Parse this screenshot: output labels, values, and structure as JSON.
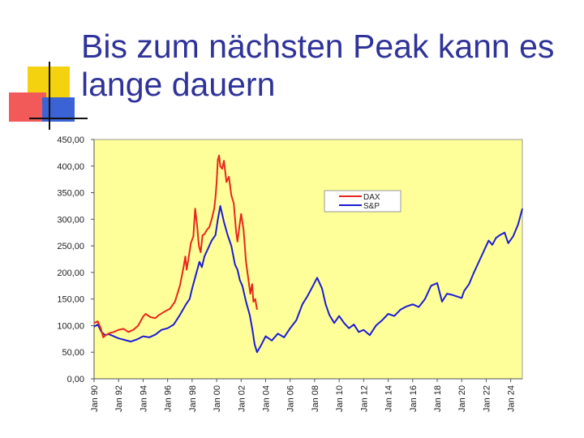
{
  "slide": {
    "title": "Bis zum nächsten Peak kann es lange dauern"
  },
  "colors": {
    "title": "#2f3399",
    "plot_background": "#ffff99",
    "dax": "#e8271c",
    "sp": "#1c1cd6",
    "deco_yellow": "#f5d20f",
    "deco_red": "#f25a5a",
    "deco_blue": "#3b63d6"
  },
  "chart_data": {
    "type": "line",
    "ylim": [
      0,
      450
    ],
    "y_ticks": [
      "0,00",
      "50,00",
      "100,00",
      "150,00",
      "200,00",
      "250,00",
      "300,00",
      "350,00",
      "400,00",
      "450,00"
    ],
    "y_tick_values": [
      0,
      50,
      100,
      150,
      200,
      250,
      300,
      350,
      400,
      450
    ],
    "x_ticks": [
      "Jan 90",
      "Jan 92",
      "Jan 94",
      "Jan 96",
      "Jan 98",
      "Jan 00",
      "Jan 02",
      "Jan 04",
      "Jan 06",
      "Jan 08",
      "Jan 10",
      "Jan 12",
      "Jan 14",
      "Jan 16",
      "Jan 18",
      "Jan 20",
      "Jan 22",
      "Jan 24"
    ],
    "x_tick_years": [
      1990,
      1992,
      1994,
      1996,
      1998,
      2000,
      2002,
      2004,
      2006,
      2008,
      2010,
      2012,
      2014,
      2016,
      2018,
      2020,
      2022,
      2024
    ],
    "xlim": [
      1990,
      2024.95
    ],
    "legend": {
      "position": "top-right"
    },
    "grid": false,
    "series": [
      {
        "name": "DAX",
        "color": "#e8271c",
        "x": [
          1990,
          1990.3,
          1990.55,
          1990.75,
          1991,
          1991.3,
          1991.6,
          1992,
          1992.4,
          1992.8,
          1993.2,
          1993.6,
          1994,
          1994.2,
          1994.6,
          1995,
          1995.3,
          1995.8,
          1996.2,
          1996.6,
          1997,
          1997.3,
          1997.45,
          1997.55,
          1997.7,
          1997.9,
          1998.1,
          1998.25,
          1998.4,
          1998.55,
          1998.7,
          1998.85,
          1999,
          1999.2,
          1999.4,
          1999.6,
          1999.8,
          1999.9,
          2000.0,
          2000.1,
          2000.2,
          2000.3,
          2000.45,
          2000.6,
          2000.8,
          2001.0,
          2001.2,
          2001.4,
          2001.6,
          2001.7,
          2001.85,
          2002.0,
          2002.2,
          2002.4,
          2002.6,
          2002.75,
          2002.9,
          2003.0,
          2003.15,
          2003.3
        ],
        "y": [
          105,
          108,
          95,
          78,
          83,
          86,
          88,
          92,
          94,
          88,
          92,
          100,
          117,
          122,
          116,
          114,
          120,
          127,
          132,
          145,
          175,
          210,
          230,
          205,
          225,
          255,
          268,
          320,
          290,
          250,
          238,
          270,
          272,
          280,
          285,
          300,
          320,
          340,
          370,
          412,
          420,
          400,
          395,
          410,
          370,
          380,
          345,
          330,
          275,
          258,
          285,
          310,
          280,
          220,
          185,
          160,
          178,
          145,
          150,
          130
        ]
      },
      {
        "name": "S&P",
        "color": "#1c1cd6",
        "x": [
          1990,
          1990.3,
          1990.6,
          1990.9,
          1991.2,
          1991.6,
          1992,
          1992.5,
          1993,
          1993.5,
          1994,
          1994.5,
          1995,
          1995.5,
          1996,
          1996.5,
          1997,
          1997.5,
          1997.8,
          1998,
          1998.3,
          1998.6,
          1998.8,
          1999,
          1999.3,
          1999.6,
          1999.9,
          2000.1,
          2000.3,
          2000.6,
          2000.9,
          2001.2,
          2001.5,
          2001.7,
          2001.9,
          2002.1,
          2002.4,
          2002.7,
          2002.9,
          2003.1,
          2003.3,
          2003.6,
          2004,
          2004.5,
          2005,
          2005.5,
          2006,
          2006.5,
          2007,
          2007.4,
          2007.8,
          2008.2,
          2008.6,
          2008.9,
          2009.2,
          2009.6,
          2010,
          2010.4,
          2010.8,
          2011.2,
          2011.6,
          2012,
          2012.5,
          2013,
          2013.5,
          2014,
          2014.5,
          2015,
          2015.5,
          2016,
          2016.5,
          2017,
          2017.5,
          2018,
          2018.4,
          2018.8,
          2019.2,
          2019.6,
          2020.0,
          2020.2,
          2020.6,
          2021.0,
          2021.5,
          2021.9,
          2022.2,
          2022.5,
          2022.8,
          2023.1,
          2023.5,
          2023.8,
          2024.2,
          2024.6,
          2024.95
        ],
        "y": [
          98,
          102,
          88,
          82,
          84,
          80,
          76,
          73,
          70,
          74,
          80,
          78,
          83,
          92,
          95,
          102,
          120,
          140,
          150,
          170,
          195,
          220,
          210,
          230,
          245,
          260,
          270,
          300,
          325,
          295,
          270,
          250,
          215,
          205,
          185,
          175,
          145,
          120,
          95,
          65,
          50,
          62,
          80,
          72,
          85,
          78,
          95,
          110,
          140,
          155,
          172,
          190,
          170,
          140,
          120,
          105,
          118,
          105,
          95,
          102,
          88,
          92,
          82,
          100,
          110,
          122,
          118,
          130,
          136,
          140,
          135,
          150,
          175,
          180,
          145,
          160,
          158,
          155,
          152,
          165,
          178,
          200,
          225,
          245,
          260,
          252,
          265,
          270,
          275,
          255,
          268,
          290,
          320
        ]
      }
    ]
  }
}
